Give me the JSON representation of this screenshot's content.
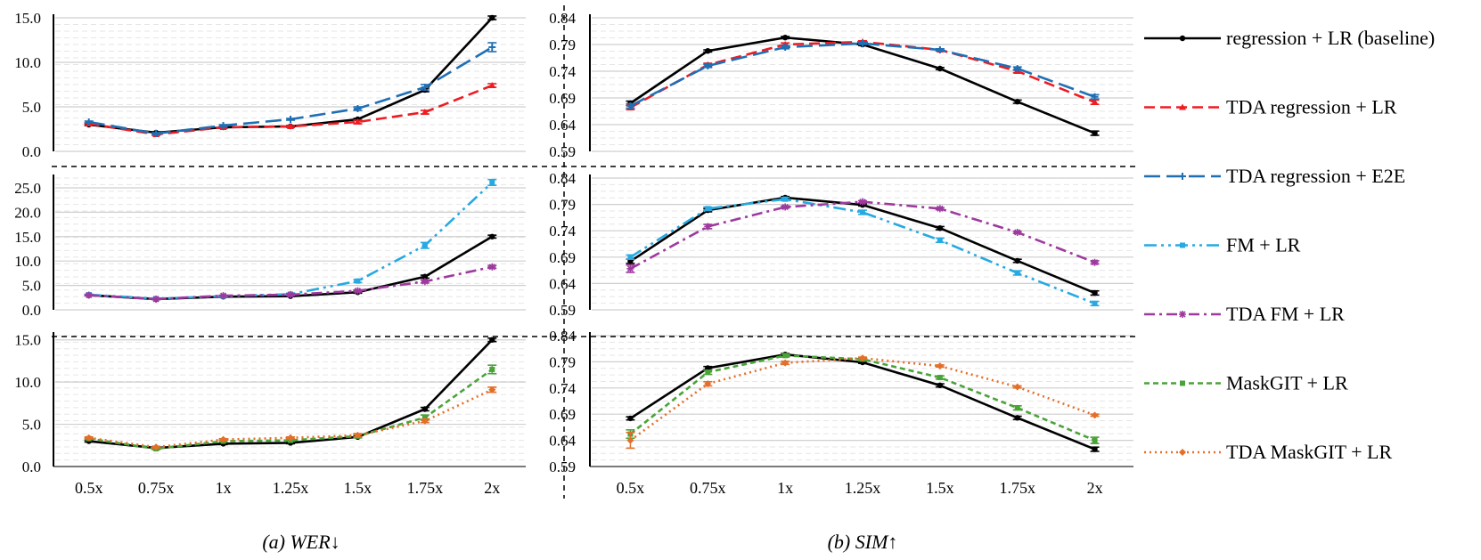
{
  "colors": {
    "baseline": "#000000",
    "tda_regression_lr": "#ee1c23",
    "tda_regression_e2e": "#1f6fb5",
    "fm_lr": "#27a9e1",
    "tda_fm_lr": "#9e3a9e",
    "maskgit_lr": "#4aa339",
    "tda_maskgit_lr": "#e36f2a"
  },
  "legend": [
    {
      "key": "baseline",
      "label": "regression + LR (baseline)",
      "dash": "solid",
      "marker": "circle"
    },
    {
      "key": "tda_regression_lr",
      "label": "TDA regression + LR",
      "dash": "dash",
      "marker": "triangle"
    },
    {
      "key": "tda_regression_e2e",
      "label": "TDA regression + E2E",
      "dash": "longdash",
      "marker": "plus"
    },
    {
      "key": "fm_lr",
      "label": "FM + LR",
      "dash": "dashdotdot",
      "marker": "square"
    },
    {
      "key": "tda_fm_lr",
      "label": "TDA FM + LR",
      "dash": "dashdot",
      "marker": "star"
    },
    {
      "key": "maskgit_lr",
      "label": "MaskGIT + LR",
      "dash": "shortdash",
      "marker": "square"
    },
    {
      "key": "tda_maskgit_lr",
      "label": "TDA MaskGIT + LR",
      "dash": "dot",
      "marker": "diamond"
    }
  ],
  "chart_data": [
    {
      "type": "line",
      "column": "wer",
      "row": 0,
      "categories": [
        "0.5x",
        "0.75x",
        "1x",
        "1.25x",
        "1.5x",
        "1.75x",
        "2x"
      ],
      "ylim": [
        0,
        15
      ],
      "yticks": [
        "0.0",
        "5.0",
        "10.0",
        "15.0"
      ],
      "series": [
        {
          "name": "regression + LR (baseline)",
          "key": "baseline",
          "values": [
            3.0,
            2.1,
            2.7,
            2.8,
            3.6,
            6.9,
            15.0
          ],
          "err": [
            0.1,
            0.1,
            0.1,
            0.1,
            0.1,
            0.2,
            0.2
          ]
        },
        {
          "name": "TDA regression + LR",
          "key": "tda_regression_lr",
          "values": [
            3.1,
            1.9,
            2.7,
            2.8,
            3.3,
            4.4,
            7.4
          ],
          "err": [
            0.1,
            0.1,
            0.1,
            0.1,
            0.2,
            0.2,
            0.2
          ]
        },
        {
          "name": "TDA regression + E2E",
          "key": "tda_regression_e2e",
          "values": [
            3.3,
            2.0,
            2.9,
            3.6,
            4.8,
            7.2,
            11.7
          ],
          "err": [
            0.1,
            0.1,
            0.1,
            0.1,
            0.2,
            0.3,
            0.5
          ]
        }
      ]
    },
    {
      "type": "line",
      "column": "sim",
      "row": 0,
      "categories": [
        "0.5x",
        "0.75x",
        "1x",
        "1.25x",
        "1.5x",
        "1.75x",
        "2x"
      ],
      "ylim": [
        0.59,
        0.84
      ],
      "yticks": [
        "0.59",
        "0.64",
        "0.69",
        "0.74",
        "0.79",
        "0.84"
      ],
      "series": [
        {
          "name": "regression + LR (baseline)",
          "key": "baseline",
          "values": [
            0.68,
            0.778,
            0.803,
            0.79,
            0.745,
            0.683,
            0.624
          ],
          "err": [
            0.004,
            0.002,
            0.002,
            0.002,
            0.002,
            0.003,
            0.004
          ]
        },
        {
          "name": "TDA regression + LR",
          "key": "tda_regression_lr",
          "values": [
            0.672,
            0.752,
            0.79,
            0.795,
            0.78,
            0.74,
            0.682
          ],
          "err": [
            0.004,
            0.003,
            0.003,
            0.002,
            0.002,
            0.003,
            0.004
          ]
        },
        {
          "name": "TDA regression + E2E",
          "key": "tda_regression_e2e",
          "values": [
            0.675,
            0.75,
            0.785,
            0.792,
            0.78,
            0.745,
            0.692
          ],
          "err": [
            0.004,
            0.003,
            0.003,
            0.002,
            0.002,
            0.003,
            0.004
          ]
        }
      ]
    },
    {
      "type": "line",
      "column": "wer",
      "row": 1,
      "categories": [
        "0.5x",
        "0.75x",
        "1x",
        "1.25x",
        "1.5x",
        "1.75x",
        "2x"
      ],
      "ylim": [
        0,
        27
      ],
      "yticks": [
        "0.0",
        "5.0",
        "10.0",
        "15.0",
        "20.0",
        "25.0"
      ],
      "series": [
        {
          "name": "regression + LR (baseline)",
          "key": "baseline",
          "values": [
            3.0,
            2.2,
            2.7,
            2.8,
            3.6,
            6.8,
            15.0
          ],
          "err": [
            0.1,
            0.1,
            0.1,
            0.1,
            0.2,
            0.3,
            0.3
          ]
        },
        {
          "name": "FM + LR",
          "key": "fm_lr",
          "values": [
            3.1,
            2.3,
            2.8,
            3.2,
            5.9,
            13.2,
            26.1
          ],
          "err": [
            0.1,
            0.1,
            0.1,
            0.2,
            0.3,
            0.6,
            0.6
          ]
        },
        {
          "name": "TDA FM + LR",
          "key": "tda_fm_lr",
          "values": [
            3.0,
            2.2,
            2.9,
            3.1,
            3.9,
            5.8,
            8.8
          ],
          "err": [
            0.1,
            0.1,
            0.1,
            0.2,
            0.2,
            0.3,
            0.3
          ]
        }
      ]
    },
    {
      "type": "line",
      "column": "sim",
      "row": 1,
      "categories": [
        "0.5x",
        "0.75x",
        "1x",
        "1.25x",
        "1.5x",
        "1.75x",
        "2x"
      ],
      "ylim": [
        0.59,
        0.84
      ],
      "yticks": [
        "0.59",
        "0.64",
        "0.69",
        "0.74",
        "0.79",
        "0.84"
      ],
      "series": [
        {
          "name": "regression + LR (baseline)",
          "key": "baseline",
          "values": [
            0.682,
            0.779,
            0.803,
            0.789,
            0.745,
            0.683,
            0.622
          ],
          "err": [
            0.004,
            0.003,
            0.002,
            0.002,
            0.003,
            0.003,
            0.004
          ]
        },
        {
          "name": "FM + LR",
          "key": "fm_lr",
          "values": [
            0.69,
            0.782,
            0.8,
            0.775,
            0.722,
            0.66,
            0.602
          ],
          "err": [
            0.004,
            0.003,
            0.003,
            0.004,
            0.004,
            0.004,
            0.004
          ]
        },
        {
          "name": "TDA FM + LR",
          "key": "tda_fm_lr",
          "values": [
            0.668,
            0.748,
            0.785,
            0.795,
            0.782,
            0.737,
            0.68
          ],
          "err": [
            0.007,
            0.004,
            0.002,
            0.002,
            0.002,
            0.002,
            0.003
          ]
        }
      ]
    },
    {
      "type": "line",
      "column": "wer",
      "row": 2,
      "categories": [
        "0.5x",
        "0.75x",
        "1x",
        "1.25x",
        "1.5x",
        "1.75x",
        "2x"
      ],
      "ylim": [
        0,
        15.5
      ],
      "yticks": [
        "0.0",
        "5.0",
        "10.0",
        "15.0"
      ],
      "series": [
        {
          "name": "regression + LR (baseline)",
          "key": "baseline",
          "values": [
            3.0,
            2.2,
            2.7,
            2.8,
            3.5,
            6.8,
            15.0
          ],
          "err": [
            0.1,
            0.1,
            0.1,
            0.1,
            0.1,
            0.2,
            0.2
          ]
        },
        {
          "name": "MaskGIT + LR",
          "key": "maskgit_lr",
          "values": [
            3.3,
            2.1,
            3.0,
            3.1,
            3.6,
            5.8,
            11.5
          ],
          "err": [
            0.1,
            0.1,
            0.1,
            0.1,
            0.2,
            0.3,
            0.5
          ]
        },
        {
          "name": "TDA MaskGIT + LR",
          "key": "tda_maskgit_lr",
          "values": [
            3.4,
            2.3,
            3.2,
            3.4,
            3.7,
            5.4,
            9.1
          ],
          "err": [
            0.1,
            0.1,
            0.1,
            0.1,
            0.2,
            0.2,
            0.3
          ]
        }
      ]
    },
    {
      "type": "line",
      "column": "sim",
      "row": 2,
      "categories": [
        "0.5x",
        "0.75x",
        "1x",
        "1.25x",
        "1.5x",
        "1.75x",
        "2x"
      ],
      "ylim": [
        0.59,
        0.84
      ],
      "yticks": [
        "0.59",
        "0.64",
        "0.69",
        "0.74",
        "0.79",
        "0.84"
      ],
      "series": [
        {
          "name": "regression + LR (baseline)",
          "key": "baseline",
          "values": [
            0.682,
            0.778,
            0.804,
            0.789,
            0.745,
            0.683,
            0.623
          ],
          "err": [
            0.003,
            0.003,
            0.002,
            0.002,
            0.003,
            0.003,
            0.004
          ]
        },
        {
          "name": "MaskGIT + LR",
          "key": "maskgit_lr",
          "values": [
            0.652,
            0.77,
            0.802,
            0.795,
            0.76,
            0.702,
            0.64
          ],
          "err": [
            0.008,
            0.004,
            0.003,
            0.003,
            0.003,
            0.004,
            0.006
          ]
        },
        {
          "name": "TDA MaskGIT + LR",
          "key": "tda_maskgit_lr",
          "values": [
            0.64,
            0.748,
            0.788,
            0.797,
            0.782,
            0.742,
            0.688
          ],
          "err": [
            0.015,
            0.004,
            0.003,
            0.002,
            0.002,
            0.002,
            0.002
          ]
        }
      ]
    }
  ],
  "captions": {
    "wer": "(a) WER↓",
    "sim": "(b) SIM↑"
  }
}
